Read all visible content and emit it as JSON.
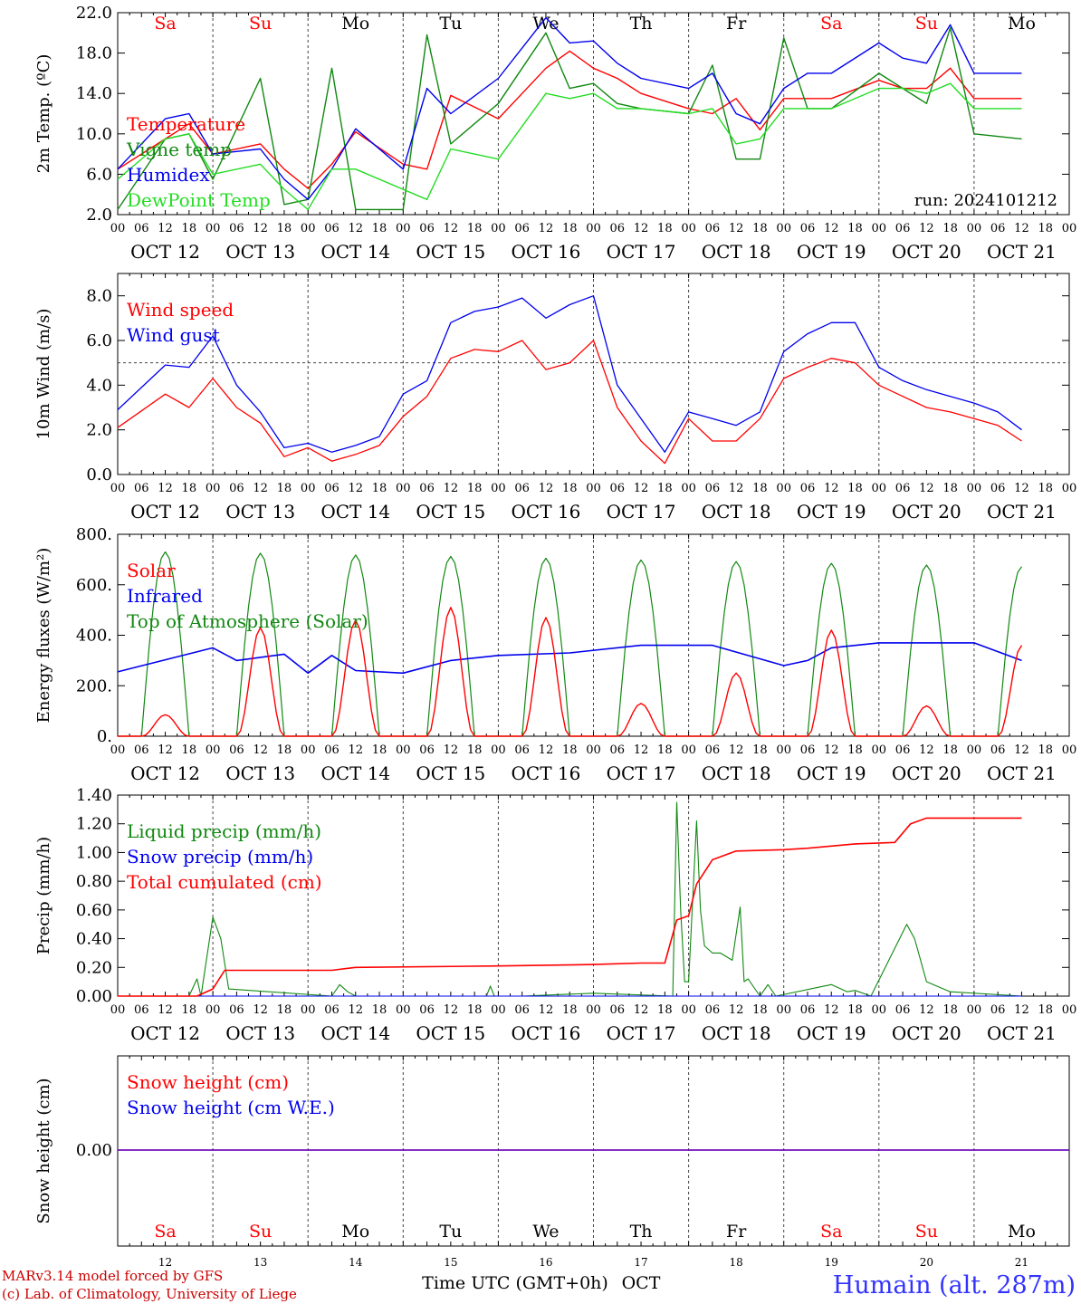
{
  "meta": {
    "run": "run: 2024101212",
    "credit_line1": "MARv3.14 model forced by GFS",
    "credit_line2": "(c) Lab. of Climatology, University of Liege",
    "xaxis_title": "Time UTC (GMT+0h)",
    "month": "OCT",
    "station": "Humain (alt. 287m)"
  },
  "colors": {
    "red": "#ff0000",
    "green": "#118811",
    "blue": "#0000ee",
    "lightgreen": "#22dd22",
    "grid": "#333333",
    "station": "#3333ff"
  },
  "days": {
    "weekdays": [
      "Sa",
      "Su",
      "Mo",
      "Tu",
      "We",
      "Th",
      "Fr",
      "Sa",
      "Su",
      "Mo"
    ],
    "weekday_colors": [
      "red",
      "red",
      "black",
      "black",
      "black",
      "black",
      "black",
      "red",
      "red",
      "black"
    ],
    "date_labels": [
      "OCT 12",
      "OCT 13",
      "OCT 14",
      "OCT 15",
      "OCT 16",
      "OCT 17",
      "OCT 18",
      "OCT 19",
      "OCT 20",
      "OCT 21"
    ],
    "day_numbers": [
      "12",
      "13",
      "14",
      "15",
      "16",
      "17",
      "18",
      "19",
      "20",
      "21"
    ],
    "hour_ticks": [
      "00",
      "06",
      "12",
      "18"
    ],
    "final_tick": "00"
  },
  "chart_data": [
    {
      "type": "line",
      "ylabel": "2m Temp. (ºC)",
      "ylim": [
        2,
        22
      ],
      "yticks": [
        "2.0",
        "6.0",
        "10.0",
        "14.0",
        "18.0",
        "22.0"
      ],
      "ytick_values": [
        2,
        6,
        10,
        14,
        18,
        22
      ],
      "x_hours": [
        0,
        12,
        18,
        24,
        36,
        42,
        48,
        54,
        60,
        72,
        78,
        84,
        96,
        108,
        114,
        120,
        126,
        132,
        144,
        150,
        156,
        162,
        168,
        174,
        180,
        192,
        198,
        204,
        210,
        216,
        228
      ],
      "series": [
        {
          "name": "Temperature",
          "color": "red",
          "values": [
            6.5,
            9.5,
            11.0,
            8.0,
            9.0,
            6.5,
            4.6,
            7.0,
            10.2,
            7.0,
            6.5,
            13.8,
            11.5,
            16.5,
            18.2,
            16.5,
            15.5,
            14.0,
            12.5,
            12.0,
            13.5,
            10.4,
            13.5,
            13.5,
            13.5,
            15.3,
            14.5,
            14.5,
            16.5,
            13.5,
            13.5
          ]
        },
        {
          "name": "Vigne temp",
          "color": "green",
          "values": [
            2.5,
            9.5,
            10.0,
            5.5,
            15.5,
            3.0,
            3.5,
            16.5,
            2.5,
            2.5,
            19.8,
            9.0,
            13.0,
            20.0,
            14.5,
            15.0,
            13.0,
            12.5,
            12.0,
            16.8,
            7.5,
            7.5,
            19.5,
            12.5,
            12.5,
            16.0,
            14.5,
            13.0,
            20.5,
            10.0,
            9.5
          ]
        },
        {
          "name": "Humidex",
          "color": "blue",
          "values": [
            6.5,
            11.5,
            12.0,
            8.0,
            8.5,
            5.5,
            3.5,
            6.5,
            10.5,
            6.5,
            14.5,
            12.0,
            15.5,
            21.5,
            19.0,
            19.2,
            17.0,
            15.5,
            14.5,
            16.0,
            12.0,
            11.0,
            14.5,
            16.0,
            16.0,
            19.0,
            17.5,
            17.0,
            20.8,
            16.0,
            16.0
          ]
        },
        {
          "name": "DewPoint Temp",
          "color": "lightgreen",
          "values": [
            5.5,
            9.5,
            10.0,
            6.0,
            7.0,
            4.5,
            2.5,
            6.5,
            6.5,
            4.5,
            3.5,
            8.5,
            7.5,
            14.0,
            13.5,
            14.0,
            12.5,
            12.5,
            12.0,
            12.5,
            9.0,
            9.5,
            12.5,
            12.5,
            12.5,
            14.5,
            14.5,
            14.0,
            15.0,
            12.5,
            12.5
          ]
        }
      ],
      "legend": [
        "Temperature",
        "Vigne temp",
        "Humidex",
        "DewPoint Temp"
      ]
    },
    {
      "type": "line",
      "ylabel": "10m Wind (m/s)",
      "ylim": [
        0,
        9
      ],
      "yticks": [
        "0.0",
        "2.0",
        "4.0",
        "6.0",
        "8.0"
      ],
      "ytick_values": [
        0,
        2,
        4,
        6,
        8
      ],
      "reference_line": 5,
      "x_hours": [
        0,
        12,
        18,
        24,
        30,
        36,
        42,
        48,
        54,
        60,
        66,
        72,
        78,
        84,
        90,
        96,
        102,
        108,
        114,
        120,
        126,
        132,
        138,
        144,
        150,
        156,
        162,
        168,
        174,
        180,
        186,
        192,
        198,
        204,
        210,
        216,
        222,
        228
      ],
      "series": [
        {
          "name": "Wind speed",
          "color": "red",
          "values": [
            2.1,
            3.6,
            3.0,
            4.3,
            3.0,
            2.3,
            0.8,
            1.2,
            0.6,
            0.9,
            1.3,
            2.6,
            3.5,
            5.2,
            5.6,
            5.5,
            6.0,
            4.7,
            5.0,
            6.0,
            3.0,
            1.5,
            0.5,
            2.5,
            1.5,
            1.5,
            2.5,
            4.3,
            4.8,
            5.2,
            5.0,
            4.0,
            3.5,
            3.0,
            2.8,
            2.5,
            2.2,
            1.5
          ]
        },
        {
          "name": "Wind gust",
          "color": "blue",
          "values": [
            2.9,
            4.9,
            4.8,
            6.2,
            4.0,
            2.8,
            1.2,
            1.4,
            1.0,
            1.3,
            1.7,
            3.6,
            4.2,
            6.8,
            7.3,
            7.5,
            7.9,
            7.0,
            7.6,
            8.0,
            4.0,
            2.5,
            1.0,
            2.8,
            2.5,
            2.2,
            2.8,
            5.5,
            6.3,
            6.8,
            6.8,
            4.8,
            4.2,
            3.8,
            3.5,
            3.2,
            2.8,
            2.0
          ]
        }
      ],
      "legend": [
        "Wind speed",
        "Wind gust"
      ]
    },
    {
      "type": "line",
      "ylabel": "Energy fluxes (W/m²)",
      "ylim": [
        0,
        800
      ],
      "yticks": [
        "0.",
        "200.",
        "400.",
        "600.",
        "800."
      ],
      "ytick_values": [
        0,
        200,
        400,
        600,
        800
      ],
      "toa_daily_peaks": [
        730,
        725,
        718,
        712,
        705,
        698,
        692,
        685,
        678,
        672
      ],
      "solar_daily_peaks": [
        85,
        430,
        460,
        510,
        470,
        130,
        250,
        420,
        120,
        360
      ],
      "infrared": {
        "x_hours": [
          0,
          24,
          30,
          42,
          48,
          54,
          60,
          72,
          84,
          96,
          114,
          132,
          150,
          168,
          174,
          180,
          192,
          216,
          228
        ],
        "values": [
          255,
          350,
          300,
          325,
          250,
          320,
          260,
          250,
          300,
          320,
          330,
          360,
          360,
          280,
          300,
          350,
          370,
          370,
          300
        ]
      },
      "legend": [
        "Solar",
        "Infrared",
        "Top of Atmosphere (Solar)"
      ],
      "series_colors": {
        "Solar": "red",
        "Infrared": "blue",
        "Top of Atmosphere (Solar)": "green"
      }
    },
    {
      "type": "line",
      "ylabel": "Precip (mm/h)",
      "ylim": [
        0,
        1.4
      ],
      "yticks": [
        "0.00",
        "0.20",
        "0.40",
        "0.60",
        "0.80",
        "1.00",
        "1.20",
        "1.40"
      ],
      "ytick_values": [
        0,
        0.2,
        0.4,
        0.6,
        0.8,
        1.0,
        1.2,
        1.4
      ],
      "series": [
        {
          "name": "Liquid precip (mm/h)",
          "color": "green",
          "x_hours": [
            0,
            18,
            20,
            21,
            24,
            26,
            28,
            54,
            56,
            58,
            60,
            66,
            93,
            94,
            95,
            102,
            120,
            140,
            141,
            142,
            143,
            144,
            146,
            147,
            148,
            150,
            152,
            155,
            157,
            158,
            159,
            162,
            164,
            166,
            180,
            184,
            186,
            190,
            199,
            201,
            204,
            210,
            228
          ],
          "values": [
            0,
            0,
            0.12,
            0,
            0.55,
            0.4,
            0.05,
            0,
            0.08,
            0.03,
            0,
            0,
            0,
            0.07,
            0,
            0,
            0.02,
            0,
            1.35,
            0.6,
            0.1,
            0.1,
            1.22,
            0.6,
            0.35,
            0.3,
            0.3,
            0.25,
            0.62,
            0.1,
            0.12,
            0,
            0.08,
            0,
            0.08,
            0.03,
            0.04,
            0,
            0.5,
            0.4,
            0.1,
            0.03,
            0
          ]
        },
        {
          "name": "Snow precip (mm/h)",
          "color": "blue",
          "x_hours": [
            0,
            228
          ],
          "values": [
            0,
            0
          ]
        },
        {
          "name": "Total cumulated (cm)",
          "color": "red",
          "x_hours": [
            0,
            20,
            24,
            27,
            54,
            60,
            96,
            120,
            132,
            138,
            141,
            144,
            146,
            150,
            156,
            168,
            174,
            186,
            196,
            200,
            204,
            228
          ],
          "values": [
            0,
            0,
            0.05,
            0.18,
            0.18,
            0.2,
            0.21,
            0.22,
            0.23,
            0.23,
            0.53,
            0.56,
            0.78,
            0.95,
            1.01,
            1.02,
            1.03,
            1.06,
            1.07,
            1.2,
            1.24,
            1.24
          ]
        }
      ],
      "legend": [
        "Liquid precip (mm/h)",
        "Snow precip (mm/h)",
        "Total cumulated (cm)"
      ]
    },
    {
      "type": "line",
      "ylabel": "Snow height (cm)",
      "yticks": [
        "0.00"
      ],
      "series": [
        {
          "name": "Snow height (cm)",
          "color": "red",
          "values": [
            0,
            0
          ]
        },
        {
          "name": "Snow height (cm W.E.)",
          "color": "blue",
          "values": [
            0,
            0
          ]
        }
      ],
      "legend": [
        "Snow height (cm)",
        "Snow height (cm W.E.)"
      ]
    }
  ]
}
